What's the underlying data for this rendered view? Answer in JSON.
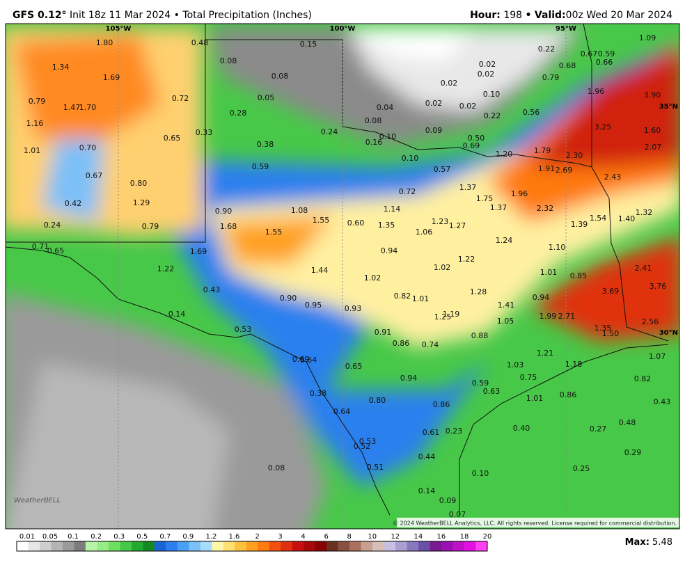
{
  "header": {
    "model": "GFS 0.12°",
    "init": "Init 18z 11 Mar 2024",
    "separator": "•",
    "product": "Total Precipitation (Inches)",
    "hour_label": "Hour:",
    "hour": "198",
    "valid_label": "Valid:",
    "valid": "00z Wed 20 Mar 2024"
  },
  "map": {
    "lon_labels": [
      "105°W",
      "100°W",
      "95°W"
    ],
    "lat_labels": [
      "35°N",
      "30°N"
    ],
    "point_values": [
      "1.80",
      "1.34",
      "1.69",
      "0.79",
      "1.47",
      "1.70",
      "1.16",
      "1.01",
      "0.70",
      "0.65",
      "0.72",
      "0.48",
      "0.08",
      "0.15",
      "0.08",
      "0.05",
      "0.28",
      "0.33",
      "0.24",
      "0.38",
      "0.59",
      "0.04",
      "0.08",
      "0.10",
      "0.16",
      "0.10",
      "0.02",
      "0.02",
      "0.02",
      "0.02",
      "0.02",
      "0.10",
      "0.09",
      "0.22",
      "0.50",
      "0.69",
      "0.57",
      "0.22",
      "0.67",
      "0.59",
      "0.66",
      "0.68",
      "0.79",
      "0.56",
      "1.96",
      "3.90",
      "1.09",
      "3.25",
      "1.60",
      "2.07",
      "1.20",
      "1.79",
      "2.30",
      "1.91",
      "2.69",
      "2.43",
      "1.37",
      "1.75",
      "1.96",
      "1.37",
      "2.32",
      "1.54",
      "1.40",
      "1.32",
      "1.39",
      "0.80",
      "0.67",
      "0.42",
      "1.29",
      "0.24",
      "0.79",
      "0.71",
      "0.65",
      "0.90",
      "1.08",
      "1.55",
      "0.60",
      "1.68",
      "1.55",
      "0.72",
      "1.14",
      "1.35",
      "1.23",
      "1.27",
      "1.06",
      "1.24",
      "1.10",
      "1.69",
      "1.22",
      "0.94",
      "1.44",
      "1.02",
      "1.22",
      "1.01",
      "0.85",
      "2.41",
      "0.43",
      "1.02",
      "3.69",
      "3.76",
      "0.90",
      "0.95",
      "0.93",
      "0.82",
      "1.01",
      "1.28",
      "0.94",
      "1.41",
      "1.19",
      "1.25",
      "1.05",
      "1.99",
      "2.71",
      "2.56",
      "0.14",
      "0.53",
      "0.91",
      "0.86",
      "0.74",
      "0.88",
      "1.35",
      "1.50",
      "0.69",
      "0.64",
      "0.65",
      "1.03",
      "1.21",
      "1.18",
      "1.07",
      "0.94",
      "0.75",
      "0.82",
      "0.59",
      "0.63",
      "0.38",
      "1.01",
      "0.86",
      "0.80",
      "0.86",
      "0.43",
      "0.64",
      "0.48",
      "0.40",
      "0.27",
      "0.61",
      "0.23",
      "0.53",
      "0.52",
      "0.44",
      "0.29",
      "0.08",
      "0.51",
      "0.10",
      "0.25",
      "0.14",
      "0.09",
      "0.07"
    ],
    "logo": "WeatherBELL",
    "copyright": "© 2024 WeatherBELL Analytics, LLC. All rights reserved. License required for commercial distribution."
  },
  "legend": {
    "levels": [
      "0.01",
      "0.05",
      "0.1",
      "0.2",
      "0.3",
      "0.5",
      "0.7",
      "0.9",
      "1.2",
      "1.6",
      "2",
      "3",
      "4",
      "6",
      "8",
      "10",
      "12",
      "14",
      "16",
      "18",
      "20"
    ],
    "colors": [
      "#ffffff",
      "#e6e6e6",
      "#cfcfcf",
      "#b4b4b4",
      "#9a9a9a",
      "#7c7c7c",
      "#b6f4a8",
      "#98ec88",
      "#6ee060",
      "#48c848",
      "#22aa30",
      "#168a22",
      "#1a64d8",
      "#2c80ee",
      "#4aa0f4",
      "#7cc0f8",
      "#a8dcfc",
      "#fff6a8",
      "#ffe070",
      "#ffc040",
      "#ffa020",
      "#ff7a10",
      "#f05010",
      "#e03010",
      "#c81010",
      "#a80808",
      "#880404",
      "#6a3020",
      "#8a5040",
      "#aa7060",
      "#c8a090",
      "#d8c0b8",
      "#c8c0e0",
      "#a8a0d0",
      "#8878c0",
      "#6a50a8",
      "#7a1890",
      "#9a10b0",
      "#c010c8",
      "#e010e0",
      "#ff40f0"
    ]
  },
  "footer": {
    "max_label": "Max:",
    "max": "5.48"
  }
}
